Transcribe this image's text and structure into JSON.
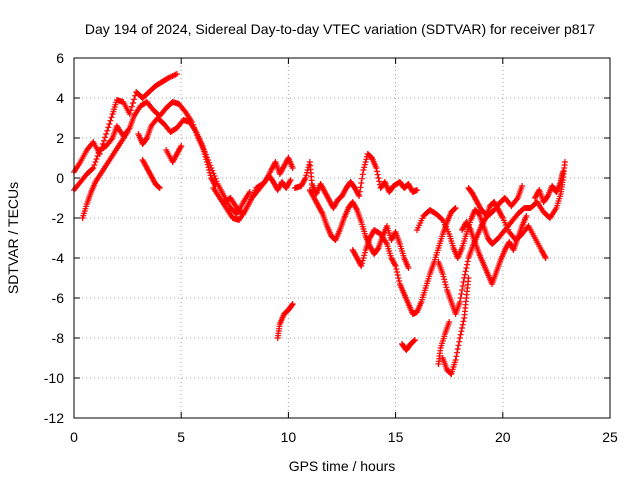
{
  "chart_data": {
    "type": "scatter",
    "title": "Day 194 of 2024, Sidereal Day-to-day VTEC variation (SDTVAR) for receiver p817",
    "xlabel": "GPS time / hours",
    "ylabel": "SDTVAR / TECUs",
    "xlim": [
      0,
      25
    ],
    "ylim": [
      -12,
      6
    ],
    "xticks": [
      0,
      5,
      10,
      15,
      20,
      25
    ],
    "yticks": [
      -12,
      -10,
      -8,
      -6,
      -4,
      -2,
      0,
      2,
      4,
      6
    ],
    "grid": true,
    "marker": "+",
    "color": "#ff0000",
    "series": [
      {
        "points": [
          [
            0.0,
            0.3
          ],
          [
            0.3,
            0.8
          ],
          [
            0.6,
            1.4
          ],
          [
            0.9,
            1.8
          ],
          [
            1.2,
            1.2
          ],
          [
            1.5,
            2.2
          ],
          [
            1.8,
            3.2
          ],
          [
            2.0,
            3.9
          ],
          [
            2.3,
            3.8
          ],
          [
            2.6,
            3.2
          ],
          [
            2.9,
            4.3
          ],
          [
            3.2,
            4.0
          ],
          [
            3.5,
            4.3
          ],
          [
            3.8,
            4.6
          ],
          [
            4.1,
            4.8
          ],
          [
            4.4,
            5.0
          ],
          [
            4.8,
            5.2
          ],
          [
            0.0,
            -0.6
          ],
          [
            0.3,
            -0.2
          ],
          [
            0.6,
            0.2
          ],
          [
            0.9,
            0.5
          ],
          [
            1.2,
            1.4
          ],
          [
            1.5,
            1.6
          ],
          [
            1.8,
            2.0
          ],
          [
            2.0,
            2.6
          ],
          [
            2.3,
            2.1
          ],
          [
            2.6,
            2.5
          ],
          [
            2.8,
            3.1
          ],
          [
            3.1,
            3.6
          ],
          [
            3.4,
            3.8
          ],
          [
            3.7,
            3.4
          ],
          [
            4.0,
            3.1
          ],
          [
            4.3,
            3.5
          ],
          [
            4.6,
            3.8
          ],
          [
            4.9,
            3.7
          ],
          [
            5.2,
            3.3
          ],
          [
            5.5,
            2.8
          ],
          [
            5.8,
            2.0
          ],
          [
            6.1,
            1.3
          ],
          [
            6.4,
            0.5
          ],
          [
            6.7,
            -0.3
          ],
          [
            7.0,
            -0.9
          ],
          [
            7.3,
            -1.5
          ],
          [
            7.6,
            -1.8
          ],
          [
            7.9,
            -1.2
          ],
          [
            8.2,
            -0.7
          ],
          [
            0.4,
            -2.0
          ],
          [
            0.6,
            -1.3
          ],
          [
            0.8,
            -0.7
          ],
          [
            1.0,
            -0.2
          ],
          [
            1.3,
            0.3
          ],
          [
            1.6,
            0.8
          ],
          [
            1.9,
            1.3
          ],
          [
            2.2,
            1.8
          ],
          [
            2.5,
            2.3
          ],
          [
            3.0,
            2.2
          ],
          [
            3.2,
            1.7
          ],
          [
            3.4,
            2.0
          ],
          [
            3.6,
            2.6
          ],
          [
            3.9,
            3.0
          ],
          [
            4.2,
            2.7
          ],
          [
            4.5,
            2.3
          ],
          [
            4.8,
            2.5
          ],
          [
            5.1,
            2.9
          ],
          [
            5.4,
            2.8
          ],
          [
            5.7,
            2.3
          ],
          [
            6.0,
            1.6
          ],
          [
            6.2,
            0.8
          ],
          [
            6.4,
            0.0
          ],
          [
            6.6,
            -0.4
          ],
          [
            3.2,
            0.9
          ],
          [
            3.4,
            0.5
          ],
          [
            3.6,
            0.1
          ],
          [
            3.8,
            -0.3
          ],
          [
            4.0,
            -0.5
          ],
          [
            4.3,
            1.4
          ],
          [
            4.6,
            0.8
          ],
          [
            4.8,
            1.2
          ],
          [
            5.0,
            1.6
          ],
          [
            6.5,
            -0.5
          ],
          [
            6.8,
            -1.0
          ],
          [
            7.1,
            -1.5
          ],
          [
            7.4,
            -2.0
          ],
          [
            7.7,
            -2.1
          ],
          [
            8.0,
            -1.6
          ],
          [
            8.3,
            -1.0
          ],
          [
            8.6,
            -0.6
          ],
          [
            8.9,
            -0.2
          ],
          [
            9.2,
            0.4
          ],
          [
            9.4,
            0.8
          ],
          [
            9.6,
            0.2
          ],
          [
            9.8,
            0.6
          ],
          [
            10.0,
            1.0
          ],
          [
            10.2,
            0.5
          ],
          [
            7.0,
            -1.2
          ],
          [
            7.3,
            -1.0
          ],
          [
            7.6,
            -1.5
          ],
          [
            7.9,
            -1.8
          ],
          [
            8.2,
            -1.2
          ],
          [
            8.5,
            -0.5
          ],
          [
            8.8,
            -0.3
          ],
          [
            9.1,
            0.1
          ],
          [
            9.3,
            -0.2
          ],
          [
            9.5,
            -0.6
          ],
          [
            9.7,
            -0.2
          ],
          [
            9.9,
            -0.5
          ],
          [
            10.1,
            -0.1
          ],
          [
            9.5,
            -8.0
          ],
          [
            9.6,
            -7.3
          ],
          [
            9.8,
            -6.8
          ],
          [
            10.0,
            -6.6
          ],
          [
            10.2,
            -6.3
          ],
          [
            10.3,
            -0.5
          ],
          [
            10.6,
            -0.4
          ],
          [
            10.8,
            0.0
          ],
          [
            11.0,
            0.8
          ],
          [
            11.1,
            -0.3
          ],
          [
            11.3,
            -0.8
          ],
          [
            11.5,
            -0.3
          ],
          [
            11.7,
            -0.7
          ],
          [
            11.9,
            -1.1
          ],
          [
            12.1,
            -1.5
          ],
          [
            12.3,
            -1.1
          ],
          [
            12.5,
            -0.9
          ],
          [
            12.7,
            -0.5
          ],
          [
            12.9,
            -0.2
          ],
          [
            13.1,
            -0.5
          ],
          [
            13.3,
            -0.9
          ],
          [
            13.5,
            0.4
          ],
          [
            13.7,
            1.2
          ],
          [
            13.9,
            1.0
          ],
          [
            14.1,
            0.5
          ],
          [
            14.3,
            -0.5
          ],
          [
            14.5,
            -0.2
          ],
          [
            14.7,
            -0.7
          ],
          [
            14.9,
            -0.4
          ],
          [
            15.2,
            -0.2
          ],
          [
            15.4,
            -0.5
          ],
          [
            15.6,
            -0.3
          ],
          [
            15.8,
            -0.7
          ],
          [
            16.0,
            -0.6
          ],
          [
            11.0,
            -0.6
          ],
          [
            11.2,
            -1.0
          ],
          [
            11.4,
            -1.4
          ],
          [
            11.6,
            -1.8
          ],
          [
            11.8,
            -2.4
          ],
          [
            12.0,
            -2.9
          ],
          [
            12.2,
            -3.1
          ],
          [
            12.4,
            -2.6
          ],
          [
            12.6,
            -2.0
          ],
          [
            12.8,
            -1.5
          ],
          [
            13.0,
            -1.2
          ],
          [
            13.2,
            -1.6
          ],
          [
            13.4,
            -2.2
          ],
          [
            13.6,
            -2.9
          ],
          [
            13.8,
            -3.4
          ],
          [
            14.0,
            -3.8
          ],
          [
            14.2,
            -3.5
          ],
          [
            14.4,
            -2.9
          ],
          [
            14.6,
            -2.4
          ],
          [
            14.8,
            -3.1
          ],
          [
            15.0,
            -2.7
          ],
          [
            15.2,
            -3.3
          ],
          [
            15.4,
            -4.0
          ],
          [
            15.6,
            -4.5
          ],
          [
            13.0,
            -3.6
          ],
          [
            13.2,
            -4.0
          ],
          [
            13.4,
            -4.4
          ],
          [
            13.6,
            -3.6
          ],
          [
            13.8,
            -3.0
          ],
          [
            14.0,
            -2.6
          ],
          [
            14.3,
            -2.8
          ],
          [
            14.6,
            -3.3
          ],
          [
            14.8,
            -4.0
          ],
          [
            15.0,
            -4.4
          ],
          [
            15.2,
            -5.3
          ],
          [
            15.4,
            -5.8
          ],
          [
            15.6,
            -6.3
          ],
          [
            15.8,
            -6.8
          ],
          [
            16.0,
            -6.7
          ],
          [
            16.2,
            -6.2
          ],
          [
            16.4,
            -5.5
          ],
          [
            16.6,
            -4.8
          ],
          [
            16.8,
            -4.2
          ],
          [
            17.0,
            -3.5
          ],
          [
            17.2,
            -2.8
          ],
          [
            17.4,
            -2.2
          ],
          [
            17.6,
            -1.7
          ],
          [
            17.8,
            -1.5
          ],
          [
            15.3,
            -8.3
          ],
          [
            15.5,
            -8.6
          ],
          [
            15.7,
            -8.3
          ],
          [
            15.9,
            -8.1
          ],
          [
            16.0,
            -2.6
          ],
          [
            16.3,
            -1.9
          ],
          [
            16.6,
            -1.6
          ],
          [
            16.9,
            -1.8
          ],
          [
            17.2,
            -2.1
          ],
          [
            17.5,
            -2.8
          ],
          [
            17.7,
            -3.5
          ],
          [
            17.9,
            -4.0
          ],
          [
            18.1,
            -3.5
          ],
          [
            18.3,
            -2.8
          ],
          [
            18.5,
            -2.1
          ],
          [
            18.7,
            -1.6
          ],
          [
            18.9,
            -1.8
          ],
          [
            19.1,
            -2.4
          ],
          [
            19.3,
            -3.0
          ],
          [
            19.5,
            -3.3
          ],
          [
            19.8,
            -3.0
          ],
          [
            20.1,
            -2.6
          ],
          [
            20.4,
            -2.2
          ],
          [
            20.7,
            -1.8
          ],
          [
            21.0,
            -1.5
          ],
          [
            21.3,
            -1.5
          ],
          [
            21.6,
            -1.2
          ],
          [
            21.9,
            -1.7
          ],
          [
            22.2,
            -2.0
          ],
          [
            22.5,
            -1.5
          ],
          [
            22.7,
            -0.8
          ],
          [
            22.8,
            -0.1
          ],
          [
            22.9,
            0.8
          ],
          [
            17.0,
            -4.2
          ],
          [
            17.2,
            -4.8
          ],
          [
            17.4,
            -5.6
          ],
          [
            17.6,
            -6.2
          ],
          [
            17.8,
            -6.8
          ],
          [
            18.0,
            -6.2
          ],
          [
            18.2,
            -5.0
          ],
          [
            18.4,
            -4.0
          ],
          [
            18.6,
            -3.4
          ],
          [
            18.8,
            -2.9
          ],
          [
            19.0,
            -2.4
          ],
          [
            19.2,
            -2.0
          ],
          [
            19.4,
            -1.4
          ],
          [
            19.6,
            -1.2
          ],
          [
            19.8,
            -1.6
          ],
          [
            20.0,
            -2.0
          ],
          [
            20.3,
            -2.7
          ],
          [
            20.6,
            -3.1
          ],
          [
            20.9,
            -2.8
          ],
          [
            21.2,
            -2.4
          ],
          [
            21.5,
            -3.0
          ],
          [
            21.8,
            -3.6
          ],
          [
            22.0,
            -4.0
          ],
          [
            17.2,
            -9.0
          ],
          [
            17.4,
            -9.6
          ],
          [
            17.6,
            -9.8
          ],
          [
            17.8,
            -9.1
          ],
          [
            18.0,
            -8.0
          ],
          [
            18.2,
            -7.0
          ],
          [
            18.3,
            -6.0
          ],
          [
            18.4,
            -5.0
          ],
          [
            17.0,
            -9.3
          ],
          [
            17.1,
            -8.5
          ],
          [
            17.3,
            -7.8
          ],
          [
            17.5,
            -7.2
          ],
          [
            18.1,
            -2.6
          ],
          [
            18.3,
            -2.2
          ],
          [
            18.5,
            -2.6
          ],
          [
            18.7,
            -3.2
          ],
          [
            18.9,
            -3.8
          ],
          [
            19.1,
            -4.3
          ],
          [
            19.3,
            -4.8
          ],
          [
            19.5,
            -5.3
          ],
          [
            19.7,
            -4.7
          ],
          [
            19.9,
            -4.1
          ],
          [
            20.1,
            -3.6
          ],
          [
            20.3,
            -3.2
          ],
          [
            20.5,
            -3.6
          ],
          [
            20.7,
            -3.0
          ],
          [
            20.9,
            -2.4
          ],
          [
            21.1,
            -1.9
          ],
          [
            18.4,
            -0.5
          ],
          [
            18.6,
            -0.8
          ],
          [
            18.8,
            -1.2
          ],
          [
            19.0,
            -1.6
          ],
          [
            19.3,
            -1.9
          ],
          [
            19.6,
            -1.6
          ],
          [
            19.9,
            -1.2
          ],
          [
            20.1,
            -1.0
          ],
          [
            20.4,
            -1.4
          ],
          [
            20.7,
            -1.0
          ],
          [
            20.9,
            -0.4
          ],
          [
            21.5,
            -1.0
          ],
          [
            21.7,
            -0.6
          ],
          [
            21.9,
            -1.2
          ],
          [
            22.1,
            -0.9
          ],
          [
            22.3,
            -0.4
          ],
          [
            22.5,
            -0.7
          ],
          [
            22.7,
            -0.2
          ],
          [
            22.8,
            0.3
          ]
        ]
      }
    ]
  }
}
